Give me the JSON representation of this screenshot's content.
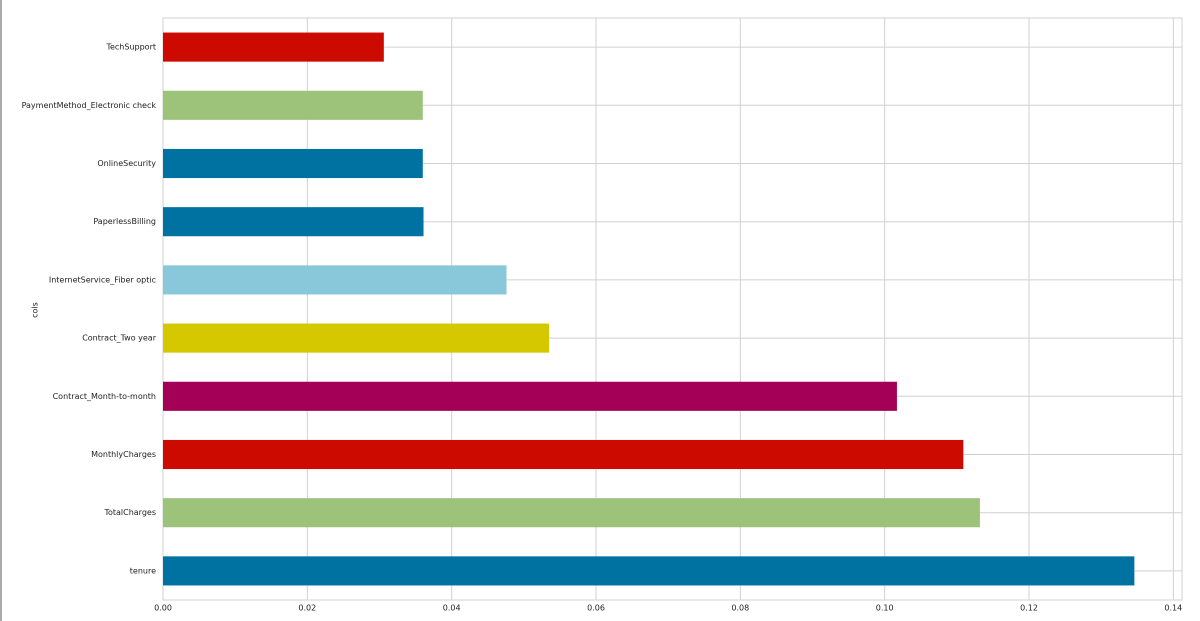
{
  "chart_data": {
    "type": "barh",
    "ylabel": "cols",
    "categories": [
      "tenure",
      "TotalCharges",
      "MonthlyCharges",
      "Contract_Month-to-month",
      "Contract_Two year",
      "InternetService_Fiber optic",
      "PaperlessBilling",
      "OnlineSecurity",
      "PaymentMethod_Electronic check",
      "TechSupport"
    ],
    "values": [
      0.1346,
      0.1132,
      0.1109,
      0.1017,
      0.0535,
      0.0476,
      0.0361,
      0.036,
      0.036,
      0.0306
    ],
    "colors": [
      "#0072a2",
      "#9dc37a",
      "#cc0a00",
      "#a50058",
      "#d6c800",
      "#88c8da",
      "#0072a2",
      "#0072a2",
      "#9dc37a",
      "#cc0a00"
    ],
    "xlim": [
      0,
      0.1412
    ],
    "xticks": [
      {
        "value": 0,
        "label": "0.00"
      },
      0.02,
      0.04,
      0.06,
      0.08,
      {
        "value": 0.1,
        "label": "0.10"
      },
      0.12,
      0.14
    ],
    "grid": true
  }
}
